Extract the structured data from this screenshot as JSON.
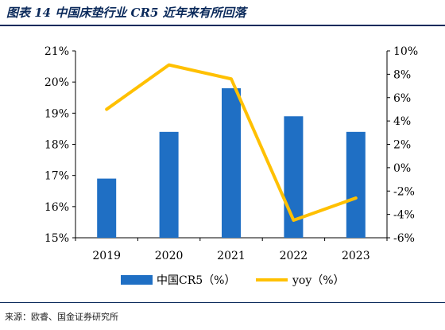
{
  "header": {
    "title": "图表 14 中国床垫行业 CR5 近年来有所回落"
  },
  "footer": {
    "source": "来源：欧睿、国金证券研究所"
  },
  "colors": {
    "bar": "#1f6fc4",
    "line": "#ffc000",
    "header": "#0b2a5b"
  },
  "chart_data": {
    "type": "bar",
    "categories": [
      "2019",
      "2020",
      "2021",
      "2022",
      "2023"
    ],
    "series": [
      {
        "name": "中国CR5（%）",
        "type": "bar",
        "axis": "left",
        "values": [
          16.9,
          18.4,
          19.8,
          18.9,
          18.4
        ]
      },
      {
        "name": "yoy（%）",
        "type": "line",
        "axis": "right",
        "values": [
          5.0,
          8.8,
          7.6,
          -4.5,
          -2.6
        ]
      }
    ],
    "y_left": {
      "lim": [
        15,
        21
      ],
      "ticks": [
        "15%",
        "16%",
        "17%",
        "18%",
        "19%",
        "20%",
        "21%"
      ]
    },
    "y_right": {
      "lim": [
        -6,
        10
      ],
      "ticks": [
        "-6%",
        "-4%",
        "-2%",
        "0%",
        "2%",
        "4%",
        "6%",
        "8%",
        "10%"
      ]
    },
    "legend_position": "bottom",
    "grid": false
  }
}
